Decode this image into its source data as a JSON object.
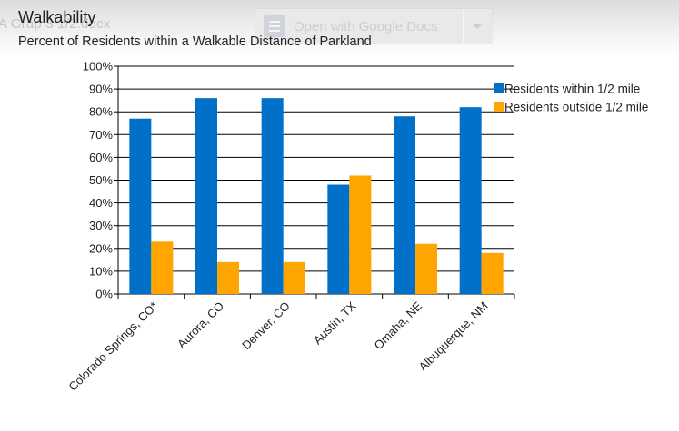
{
  "viewer": {
    "filename_fragment": "A  Grap  3    1/2.docx",
    "open_button_label": "Open with Google Docs",
    "docs_icon": "docs-icon",
    "dropdown_icon": "chevron-down-icon"
  },
  "colors": {
    "series_within": "#0070c8",
    "series_outside": "#ffa500",
    "gridline": "#000000"
  },
  "chart_data": {
    "type": "bar",
    "title": "Walkability",
    "subtitle": "Percent of Residents within a Walkable Distance of Parkland",
    "categories": [
      "Colorado Springs, CO*",
      "Aurora, CO",
      "Denver, CO",
      "Austin, TX",
      "Omaha, NE",
      "Albuquerque, NM"
    ],
    "series": [
      {
        "name": "Residents within 1/2 mile",
        "values": [
          77,
          86,
          86,
          48,
          78,
          82
        ]
      },
      {
        "name": "Residents outside 1/2 mile",
        "values": [
          23,
          14,
          14,
          52,
          22,
          18
        ]
      }
    ],
    "yticks": [
      "0%",
      "10%",
      "20%",
      "30%",
      "40%",
      "50%",
      "60%",
      "70%",
      "80%",
      "90%",
      "100%"
    ],
    "ylim": [
      0,
      100
    ],
    "grid": true,
    "legend": "top-right"
  }
}
